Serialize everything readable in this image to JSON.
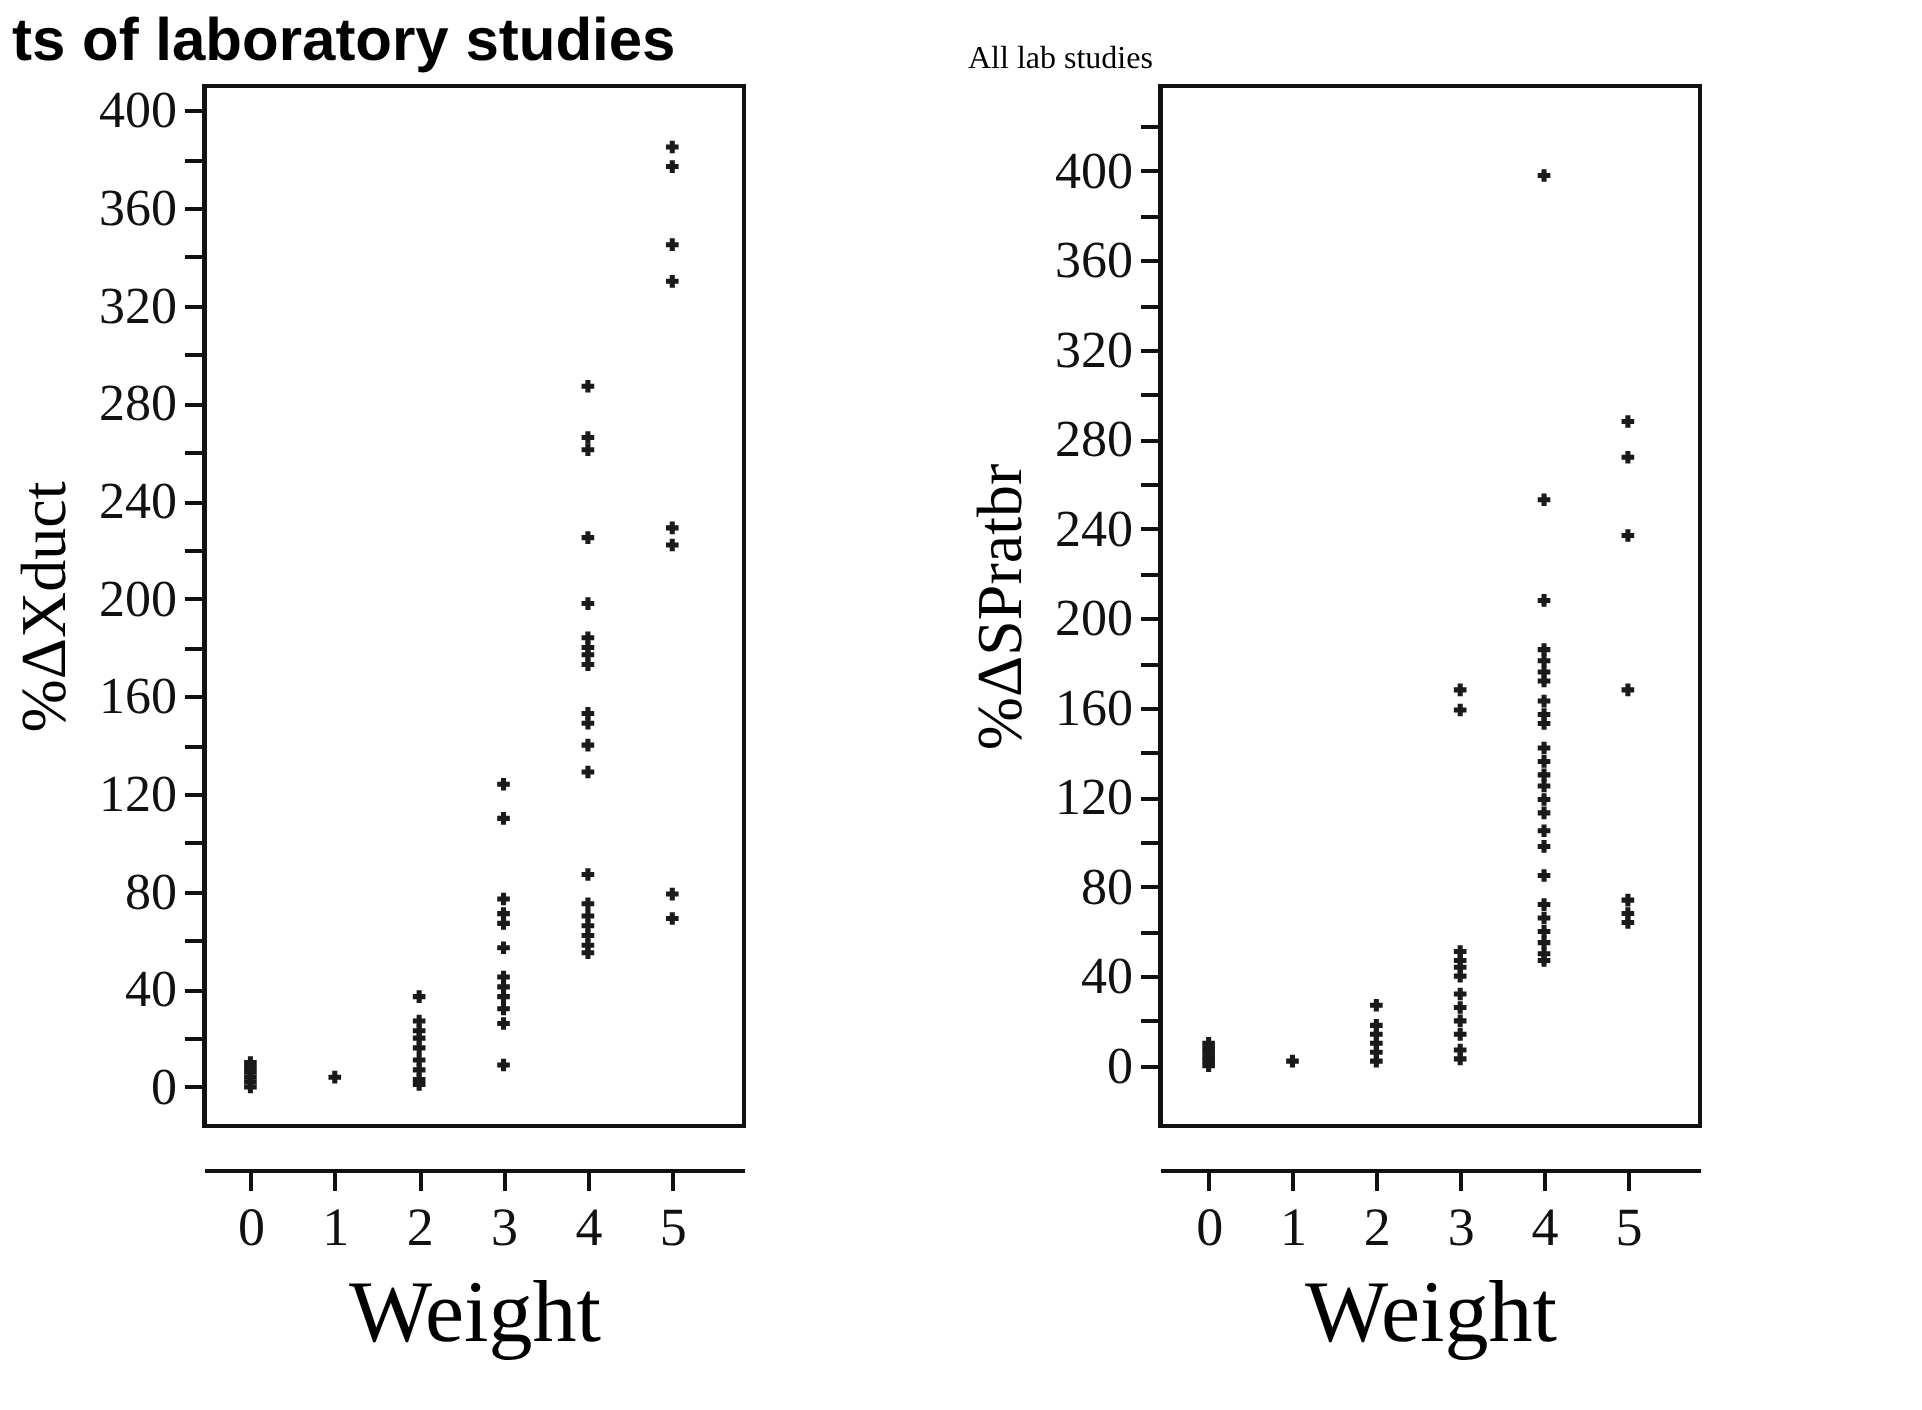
{
  "chart_data": [
    {
      "type": "scatter",
      "title": "ts of laboratory studies",
      "xlabel": "Weight",
      "ylabel": "%ΔXduct",
      "marker": "cross",
      "grid": false,
      "xlim": [
        -0.55,
        5.85
      ],
      "ylim": [
        -16,
        410
      ],
      "xticks": [
        0,
        1,
        2,
        3,
        4,
        5
      ],
      "yticks": [
        0,
        {
          "value": 20,
          "label": null
        },
        40,
        {
          "value": 60,
          "label": null
        },
        80,
        {
          "value": 100,
          "label": null
        },
        120,
        {
          "value": 140,
          "label": null
        },
        160,
        {
          "value": 180,
          "label": null
        },
        200,
        {
          "value": 220,
          "label": null
        },
        240,
        {
          "value": 260,
          "label": null
        },
        280,
        {
          "value": 300,
          "label": null
        },
        320,
        {
          "value": 340,
          "label": null
        },
        360,
        {
          "value": 380,
          "label": null
        },
        400
      ],
      "series": [
        {
          "color": "#1a1a1a",
          "x": [
            0,
            0,
            0,
            0,
            0,
            0,
            1,
            2,
            2,
            2,
            2,
            2,
            2,
            2,
            2,
            2,
            3,
            3,
            3,
            3,
            3,
            3,
            3,
            3,
            3,
            3,
            3,
            3,
            4,
            4,
            4,
            4,
            4,
            4,
            4,
            4,
            4,
            4,
            4,
            4,
            4,
            4,
            4,
            4,
            4,
            4,
            4,
            4,
            5,
            5,
            5,
            5,
            5,
            5,
            5,
            5
          ],
          "values": [
            0,
            2,
            4,
            6,
            8,
            10,
            4,
            37,
            27,
            23,
            20,
            16,
            11,
            7,
            3,
            1,
            124,
            110,
            77,
            71,
            67,
            57,
            45,
            41,
            37,
            32,
            26,
            9,
            287,
            266,
            261,
            225,
            198,
            184,
            180,
            177,
            173,
            153,
            149,
            140,
            129,
            87,
            75,
            70,
            66,
            62,
            58,
            55,
            385,
            377,
            345,
            330,
            229,
            222,
            79,
            69
          ]
        }
      ]
    },
    {
      "type": "scatter",
      "title": "All lab studies",
      "xlabel": "Weight",
      "ylabel": "%ΔSPratbr",
      "marker": "cross",
      "grid": false,
      "xlim": [
        -0.58,
        5.86
      ],
      "ylim": [
        -27,
        438
      ],
      "xticks": [
        0,
        1,
        2,
        3,
        4,
        5
      ],
      "yticks": [
        0,
        {
          "value": 20,
          "label": null
        },
        40,
        {
          "value": 60,
          "label": null
        },
        80,
        {
          "value": 100,
          "label": null
        },
        120,
        {
          "value": 140,
          "label": null
        },
        160,
        {
          "value": 180,
          "label": null
        },
        200,
        {
          "value": 220,
          "label": null
        },
        240,
        {
          "value": 260,
          "label": null
        },
        280,
        {
          "value": 300,
          "label": null
        },
        320,
        {
          "value": 340,
          "label": null
        },
        360,
        {
          "value": 380,
          "label": null
        },
        400,
        {
          "value": 420,
          "label": null
        }
      ],
      "series": [
        {
          "color": "#1a1a1a",
          "x": [
            0,
            0,
            0,
            0,
            0,
            0,
            1,
            2,
            2,
            2,
            2,
            2,
            2,
            3,
            3,
            3,
            3,
            3,
            3,
            3,
            3,
            3,
            3,
            3,
            3,
            4,
            4,
            4,
            4,
            4,
            4,
            4,
            4,
            4,
            4,
            4,
            4,
            4,
            4,
            4,
            4,
            4,
            4,
            4,
            4,
            4,
            4,
            4,
            4,
            4,
            5,
            5,
            5,
            5,
            5,
            5,
            5
          ],
          "values": [
            0,
            2,
            4,
            6,
            8,
            10,
            2,
            27,
            18,
            14,
            10,
            6,
            2,
            168,
            159,
            51,
            47,
            44,
            40,
            32,
            26,
            20,
            14,
            7,
            3,
            398,
            253,
            208,
            186,
            181,
            176,
            172,
            163,
            157,
            153,
            142,
            136,
            130,
            125,
            119,
            113,
            105,
            98,
            85,
            72,
            66,
            60,
            55,
            50,
            47,
            288,
            272,
            237,
            168,
            74,
            68,
            64
          ]
        }
      ]
    }
  ]
}
